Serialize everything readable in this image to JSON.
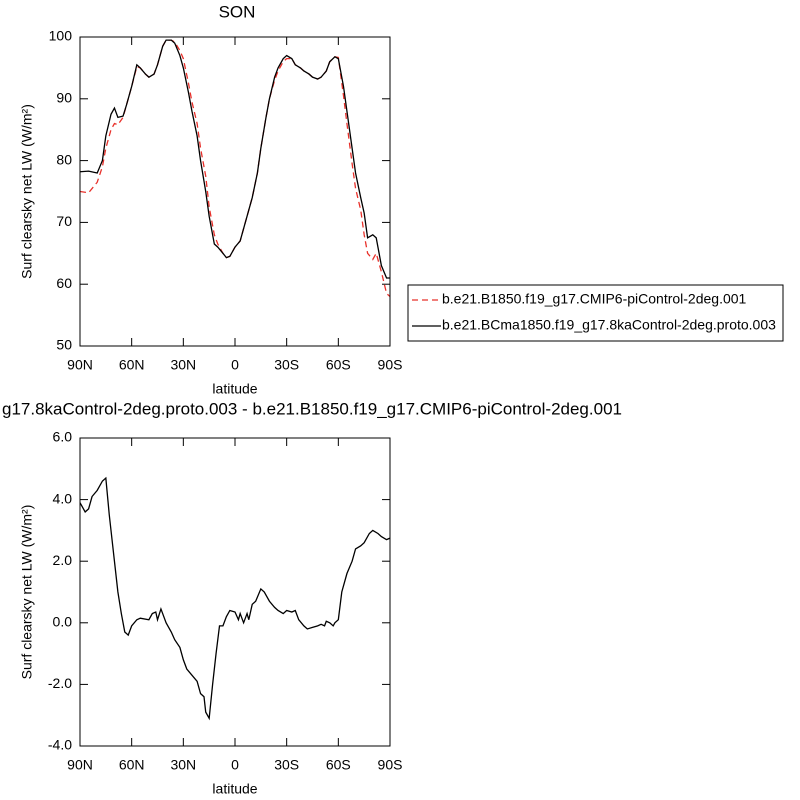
{
  "chart_data": [
    {
      "type": "line",
      "title": "SON",
      "xlabel": "latitude",
      "ylabel": "Surf clearsky net LW (W/m²)",
      "xlim": [
        90,
        -90
      ],
      "ylim": [
        50,
        100
      ],
      "xticks": [
        {
          "value": 90,
          "label": "90N"
        },
        {
          "value": 60,
          "label": "60N"
        },
        {
          "value": 30,
          "label": "30N"
        },
        0,
        {
          "value": -30,
          "label": "30S"
        },
        {
          "value": -60,
          "label": "60S"
        },
        {
          "value": -90,
          "label": "90S"
        }
      ],
      "yticks": [
        50,
        60,
        70,
        80,
        90,
        100
      ],
      "legend": "right",
      "x": [
        90,
        85,
        80,
        77,
        75,
        72,
        70,
        68,
        65,
        63,
        60,
        57,
        55,
        52,
        50,
        47,
        45,
        42,
        40,
        37,
        35,
        32,
        30,
        27,
        25,
        22,
        20,
        17,
        15,
        12,
        10,
        7,
        5,
        3,
        0,
        -3,
        -5,
        -8,
        -10,
        -13,
        -15,
        -18,
        -20,
        -23,
        -25,
        -28,
        -30,
        -33,
        -35,
        -38,
        -40,
        -43,
        -45,
        -48,
        -50,
        -53,
        -55,
        -58,
        -60,
        -63,
        -65,
        -68,
        -70,
        -73,
        -75,
        -77,
        -80,
        -82,
        -85,
        -88,
        -90
      ],
      "series": [
        {
          "name": "b.e21.B1850.f19_g17.CMIP6-piControl-2deg.001",
          "color": "#e8302a",
          "line_style": "dashed",
          "values": [
            75,
            74.8,
            76.5,
            79,
            82,
            85,
            86,
            85.8,
            87,
            89,
            92,
            95.2,
            95,
            94,
            93.5,
            94,
            95.5,
            98.5,
            99.5,
            99.5,
            99.2,
            97.8,
            96.5,
            92.5,
            89.5,
            86,
            82,
            77.5,
            72.5,
            68,
            66.5,
            65,
            64.3,
            64.5,
            66,
            67,
            69,
            72,
            74,
            78,
            82,
            87,
            90,
            93,
            94.5,
            96,
            96.5,
            96.5,
            95.5,
            95,
            94.5,
            94,
            93.5,
            93.2,
            93.5,
            94.5,
            96,
            96.8,
            96.7,
            90.5,
            86,
            79.5,
            75.5,
            72,
            68,
            65,
            64,
            65,
            62,
            58.5,
            58
          ]
        },
        {
          "name": "b.e21.BCma1850.f19_g17.8kaControl-2deg.proto.003",
          "color": "#000000",
          "line_style": "solid",
          "values": [
            78.2,
            78.3,
            78.0,
            80,
            84,
            87.5,
            88.5,
            87,
            87.2,
            89,
            92,
            95.5,
            95,
            94,
            93.5,
            94,
            95.5,
            98.5,
            99.5,
            99.5,
            99,
            97,
            95,
            91,
            88,
            84,
            80,
            75,
            71,
            66.5,
            66,
            65,
            64.3,
            64.5,
            66,
            67,
            69,
            72,
            74,
            78,
            82,
            87,
            90,
            93.5,
            95,
            96.5,
            97,
            96.5,
            95.5,
            95,
            94.5,
            94,
            93.5,
            93.2,
            93.5,
            94.5,
            96,
            96.8,
            96.5,
            92,
            88,
            82,
            78,
            74,
            71.5,
            67.5,
            68,
            67.5,
            63,
            61,
            61
          ]
        }
      ]
    },
    {
      "type": "line",
      "title": "g17.8kaControl-2deg.proto.003 - b.e21.B1850.f19_g17.CMIP6-piControl-2deg.001",
      "xlabel": "latitude",
      "ylabel": "Surf clearsky net LW (W/m²)",
      "xlim": [
        90,
        -90
      ],
      "ylim": [
        -4,
        6
      ],
      "xticks": [
        {
          "value": 90,
          "label": "90N"
        },
        {
          "value": 60,
          "label": "60N"
        },
        {
          "value": 30,
          "label": "30N"
        },
        0,
        {
          "value": -30,
          "label": "30S"
        },
        {
          "value": -60,
          "label": "60S"
        },
        {
          "value": -90,
          "label": "90S"
        }
      ],
      "yticks": [
        {
          "value": -4,
          "label": "-4.0"
        },
        {
          "value": -2,
          "label": "-2.0"
        },
        {
          "value": 0,
          "label": "0.0"
        },
        {
          "value": 2,
          "label": "2.0"
        },
        {
          "value": 4,
          "label": "4.0"
        },
        {
          "value": 6,
          "label": "6.0"
        }
      ],
      "x": [
        90,
        87,
        85,
        83,
        80,
        77,
        75,
        73,
        70,
        68,
        66,
        64,
        62,
        60,
        57,
        55,
        50,
        48,
        46,
        45,
        43,
        40,
        37,
        35,
        32,
        30,
        28,
        25,
        22,
        20,
        18,
        17,
        15,
        13,
        11,
        9,
        7,
        5,
        3,
        0,
        -2,
        -3,
        -5,
        -7,
        -8,
        -10,
        -12,
        -15,
        -17,
        -20,
        -23,
        -25,
        -28,
        -30,
        -33,
        -35,
        -37,
        -40,
        -42,
        -45,
        -48,
        -50,
        -52,
        -53,
        -55,
        -57,
        -58,
        -60,
        -62,
        -65,
        -68,
        -70,
        -73,
        -75,
        -78,
        -80,
        -83,
        -85,
        -88,
        -90
      ],
      "series": [
        {
          "color": "#000000",
          "line_style": "solid",
          "values": [
            3.9,
            3.6,
            3.7,
            4.1,
            4.3,
            4.6,
            4.7,
            3.5,
            2.0,
            1.0,
            0.3,
            -0.3,
            -0.4,
            -0.1,
            0.1,
            0.15,
            0.1,
            0.3,
            0.35,
            0.1,
            0.45,
            0,
            -0.3,
            -0.55,
            -0.8,
            -1.2,
            -1.5,
            -1.7,
            -1.9,
            -2.3,
            -2.4,
            -2.9,
            -3.1,
            -2,
            -1,
            -0.1,
            -0.1,
            0.2,
            0.4,
            0.35,
            0.1,
            0.3,
            0,
            0.3,
            0.1,
            0.6,
            0.7,
            1.1,
            1.0,
            0.7,
            0.5,
            0.4,
            0.3,
            0.4,
            0.35,
            0.4,
            0.1,
            -0.1,
            -0.2,
            -0.15,
            -0.1,
            -0.05,
            -0.1,
            0.05,
            0,
            -0.1,
            0,
            0.1,
            1,
            1.6,
            2,
            2.4,
            2.5,
            2.6,
            2.9,
            3.0,
            2.9,
            2.8,
            2.7,
            2.75
          ]
        }
      ]
    }
  ]
}
